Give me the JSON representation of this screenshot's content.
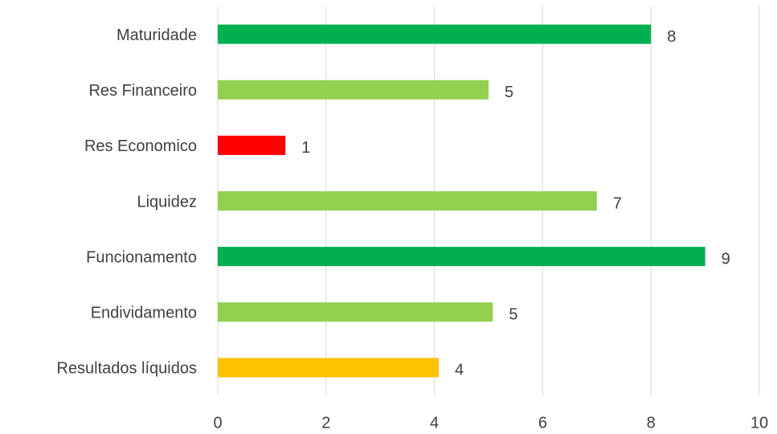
{
  "chart_data": {
    "type": "hbar",
    "categories": [
      "Maturidade",
      "Res Financeiro",
      "Res Economico",
      "Liquidez",
      "Funcionamento",
      "Endividamento",
      "Resultados líquidos"
    ],
    "values": [
      8,
      5,
      1.25,
      7,
      9,
      5.08,
      4.08
    ],
    "value_labels": [
      "8",
      "5",
      "1",
      "7",
      "9",
      "5",
      "4"
    ],
    "colors": [
      "#00b050",
      "#92d050",
      "#ff0000",
      "#92d050",
      "#00b050",
      "#92d050",
      "#ffc000"
    ],
    "xlim": [
      0,
      10
    ],
    "xticks": [
      0,
      2,
      4,
      6,
      8,
      10
    ],
    "grid": true
  }
}
